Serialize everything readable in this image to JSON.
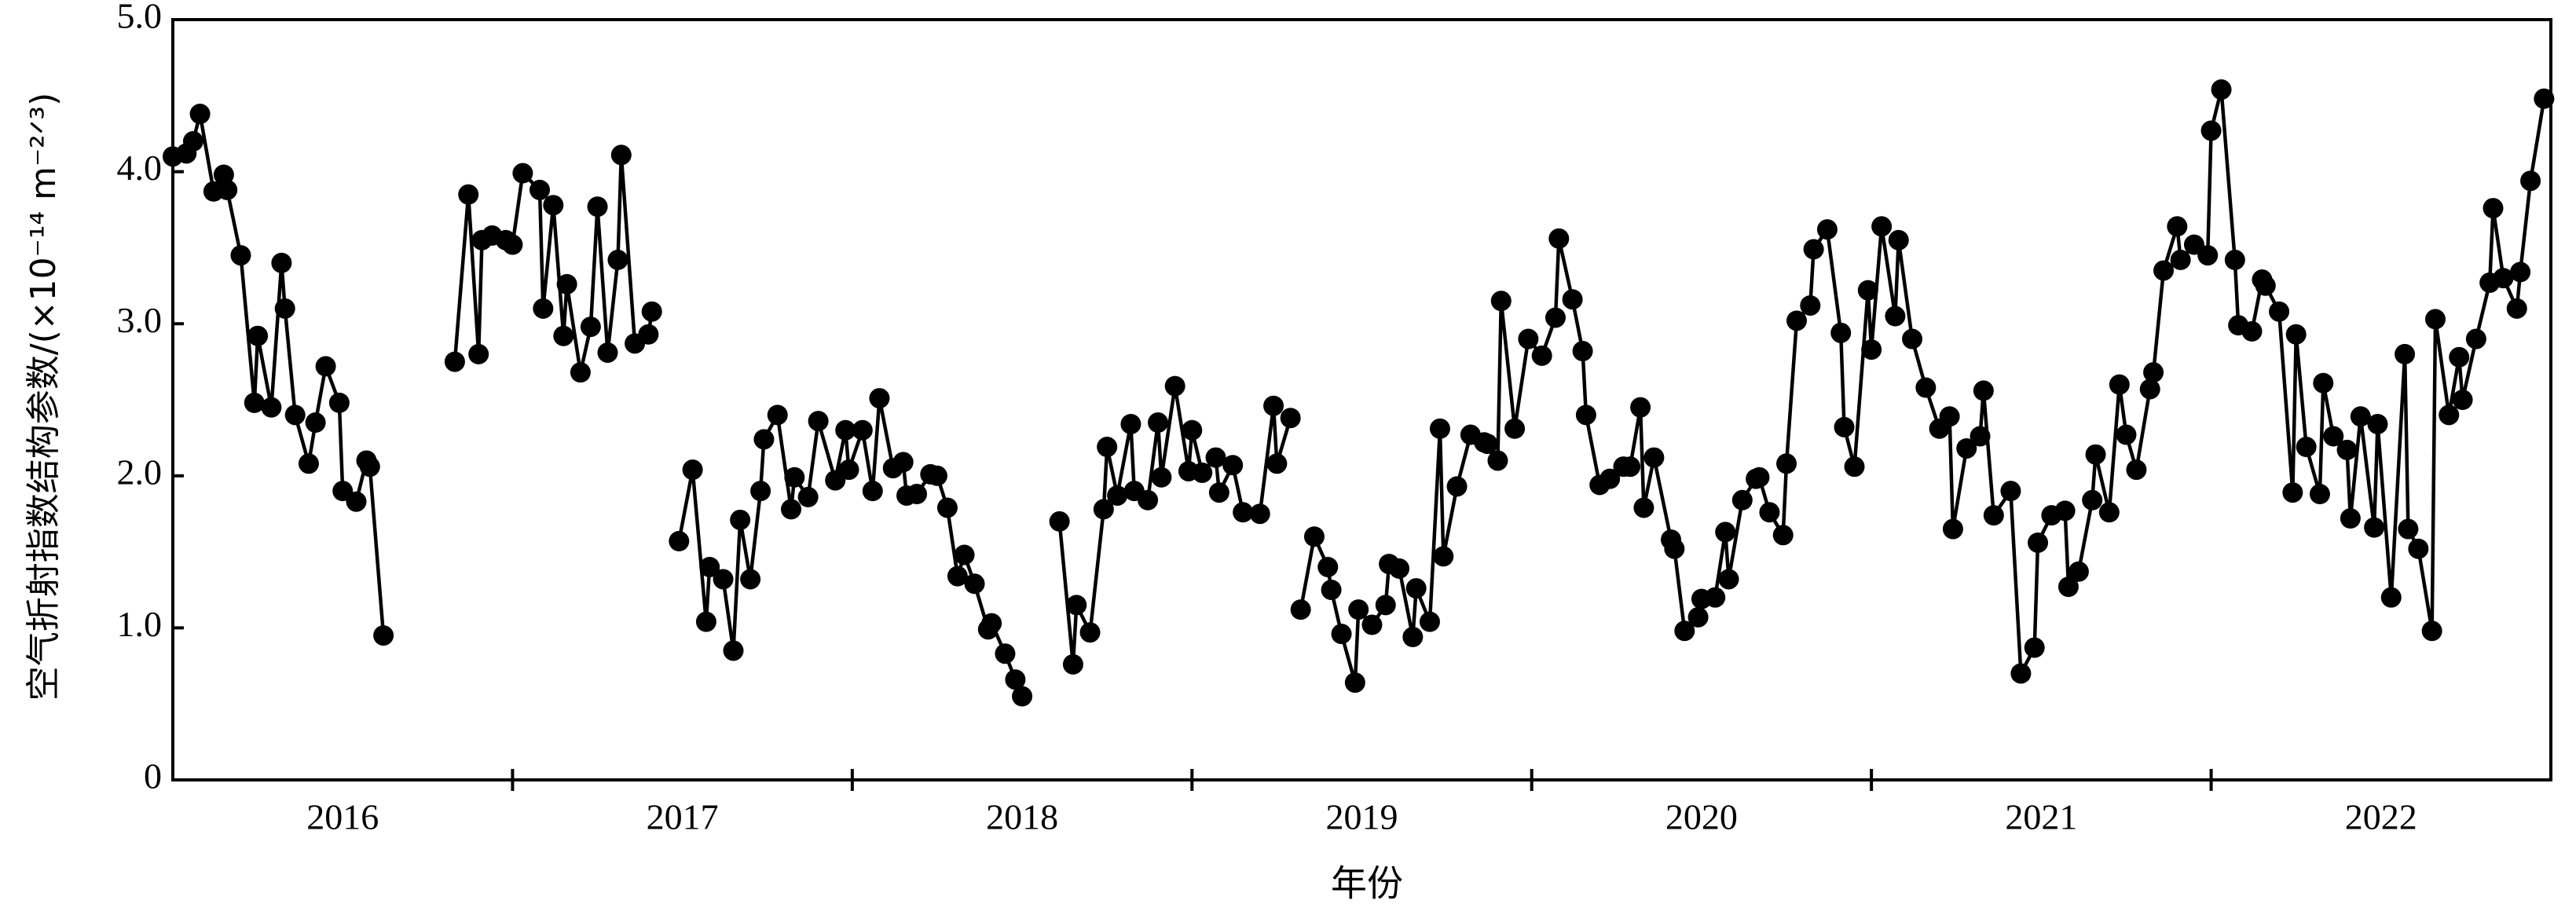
{
  "chart_data": {
    "type": "line",
    "y_label": "空气折射指数结构参数/(×10⁻¹⁴ m⁻²ᐟ³)",
    "x_label": "年份",
    "xlim": [
      2016,
      2023
    ],
    "xticks": [
      {
        "value": 2016.5,
        "label": "2016"
      },
      {
        "value": 2017.5,
        "label": "2017"
      },
      {
        "value": 2018.5,
        "label": "2018"
      },
      {
        "value": 2019.5,
        "label": "2019"
      },
      {
        "value": 2020.5,
        "label": "2020"
      },
      {
        "value": 2021.5,
        "label": "2021"
      },
      {
        "value": 2022.5,
        "label": "2022"
      }
    ],
    "xtick_marks": [
      2017,
      2018,
      2019,
      2020,
      2021,
      2022
    ],
    "ylim": [
      0,
      5
    ],
    "yticks": [
      0,
      {
        "value": 1,
        "label": "1.0"
      },
      {
        "value": 2,
        "label": "2.0"
      },
      {
        "value": 3,
        "label": "3.0"
      },
      {
        "value": 4,
        "label": "4.0"
      },
      {
        "value": 5,
        "label": "5.0"
      }
    ],
    "color": "#000000",
    "x": [
      2016.0,
      2016.04,
      2016.06,
      2016.08,
      2016.12,
      2016.15,
      2016.16,
      2016.2,
      2016.24,
      2016.25,
      2016.29,
      2016.32,
      2016.33,
      2016.36,
      2016.4,
      2016.42,
      2016.45,
      2016.49,
      2016.5,
      2016.54,
      2016.57,
      2016.58,
      2016.62,
      2016.72,
      2016.83,
      2016.87,
      2016.9,
      2016.91,
      2016.94,
      2016.98,
      2017.0,
      2017.03,
      2017.08,
      2017.09,
      2017.12,
      2017.15,
      2017.16,
      2017.2,
      2017.23,
      2017.25,
      2017.28,
      2017.31,
      2017.32,
      2017.36,
      2017.4,
      2017.41,
      2017.45,
      2017.49,
      2017.53,
      2017.57,
      2017.58,
      2017.62,
      2017.65,
      2017.67,
      2017.7,
      2017.73,
      2017.74,
      2017.78,
      2017.82,
      2017.83,
      2017.87,
      2017.9,
      2017.95,
      2017.98,
      2017.99,
      2018.03,
      2018.06,
      2018.08,
      2018.12,
      2018.15,
      2018.16,
      2018.19,
      2018.23,
      2018.25,
      2018.28,
      2018.31,
      2018.33,
      2018.36,
      2018.4,
      2018.41,
      2018.45,
      2018.48,
      2018.5,
      2018.55,
      2018.61,
      2018.65,
      2018.66,
      2018.7,
      2018.74,
      2018.75,
      2018.78,
      2018.82,
      2018.83,
      2018.87,
      2018.9,
      2018.91,
      2018.95,
      2018.99,
      2019.0,
      2019.03,
      2019.07,
      2019.08,
      2019.12,
      2019.15,
      2019.2,
      2019.24,
      2019.25,
      2019.29,
      2019.3,
      2019.32,
      2019.36,
      2019.4,
      2019.41,
      2019.44,
      2019.48,
      2019.49,
      2019.53,
      2019.57,
      2019.58,
      2019.61,
      2019.65,
      2019.66,
      2019.7,
      2019.73,
      2019.74,
      2019.78,
      2019.82,
      2019.86,
      2019.87,
      2019.9,
      2019.91,
      2019.95,
      2019.99,
      2020.03,
      2020.07,
      2020.08,
      2020.12,
      2020.15,
      2020.16,
      2020.2,
      2020.23,
      2020.27,
      2020.29,
      2020.32,
      2020.33,
      2020.36,
      2020.41,
      2020.42,
      2020.45,
      2020.49,
      2020.5,
      2020.54,
      2020.57,
      2020.58,
      2020.62,
      2020.66,
      2020.67,
      2020.7,
      2020.74,
      2020.75,
      2020.78,
      2020.82,
      2020.83,
      2020.87,
      2020.91,
      2020.92,
      2020.95,
      2020.99,
      2021.0,
      2021.03,
      2021.07,
      2021.08,
      2021.12,
      2021.16,
      2021.2,
      2021.23,
      2021.24,
      2021.28,
      2021.32,
      2021.33,
      2021.36,
      2021.41,
      2021.44,
      2021.48,
      2021.49,
      2021.53,
      2021.57,
      2021.58,
      2021.61,
      2021.65,
      2021.66,
      2021.7,
      2021.73,
      2021.75,
      2021.78,
      2021.82,
      2021.83,
      2021.86,
      2021.9,
      2021.91,
      2021.95,
      2021.99,
      2022.0,
      2022.03,
      2022.07,
      2022.08,
      2022.12,
      2022.15,
      2022.16,
      2022.2,
      2022.24,
      2022.25,
      2022.28,
      2022.32,
      2022.33,
      2022.36,
      2022.4,
      2022.41,
      2022.44,
      2022.48,
      2022.49,
      2022.53,
      2022.57,
      2022.58,
      2022.61,
      2022.65,
      2022.66,
      2022.7,
      2022.73,
      2022.74,
      2022.78,
      2022.82,
      2022.83,
      2022.86,
      2022.9,
      2022.91,
      2022.94,
      2022.98
    ],
    "values": [
      4.1,
      4.12,
      4.2,
      4.38,
      3.87,
      3.98,
      3.88,
      3.45,
      2.48,
      2.92,
      2.45,
      3.4,
      3.1,
      2.4,
      2.08,
      2.35,
      2.72,
      2.48,
      1.9,
      1.83,
      2.1,
      2.06,
      0.95,
      null,
      2.75,
      3.85,
      2.8,
      3.55,
      3.58,
      3.55,
      3.52,
      3.99,
      3.88,
      3.1,
      3.78,
      2.92,
      3.26,
      2.68,
      2.98,
      3.77,
      2.81,
      3.42,
      4.11,
      2.87,
      2.93,
      3.08,
      null,
      1.57,
      2.04,
      1.04,
      1.4,
      1.32,
      0.85,
      1.71,
      1.32,
      1.9,
      2.24,
      2.4,
      1.78,
      1.99,
      1.86,
      2.36,
      1.97,
      2.3,
      2.04,
      2.3,
      1.9,
      2.51,
      2.05,
      2.09,
      1.87,
      1.88,
      2.01,
      2.0,
      1.79,
      1.34,
      1.48,
      1.29,
      0.99,
      1.03,
      0.83,
      0.66,
      0.55,
      null,
      1.7,
      0.76,
      1.15,
      0.97,
      1.78,
      2.19,
      1.87,
      2.34,
      1.9,
      1.84,
      2.35,
      1.99,
      2.59,
      2.03,
      2.3,
      2.02,
      2.12,
      1.89,
      2.07,
      1.76,
      1.75,
      2.46,
      2.08,
      2.38,
      null,
      1.12,
      1.6,
      1.4,
      1.25,
      0.96,
      0.64,
      1.12,
      1.02,
      1.15,
      1.42,
      1.39,
      0.94,
      1.26,
      1.04,
      2.31,
      1.47,
      1.93,
      2.27,
      2.22,
      2.21,
      2.1,
      3.15,
      2.31,
      2.9,
      2.79,
      3.04,
      3.56,
      3.16,
      2.82,
      2.4,
      1.94,
      1.98,
      2.06,
      2.06,
      2.45,
      1.79,
      2.12,
      1.58,
      1.52,
      0.98,
      1.07,
      1.19,
      1.2,
      1.63,
      1.32,
      1.84,
      1.98,
      1.99,
      1.76,
      1.61,
      2.08,
      3.02,
      3.12,
      3.49,
      3.62,
      2.94,
      2.32,
      2.06,
      3.22,
      2.83,
      3.64,
      3.05,
      3.55,
      2.9,
      2.58,
      2.31,
      2.39,
      1.65,
      2.18,
      2.26,
      2.56,
      1.74,
      1.9,
      0.7,
      0.87,
      1.56,
      1.74,
      1.77,
      1.27,
      1.37,
      1.84,
      2.14,
      1.76,
      2.6,
      2.27,
      2.04,
      2.57,
      2.68,
      3.35,
      3.64,
      3.42,
      3.52,
      3.45,
      4.27,
      4.54,
      3.42,
      2.99,
      2.95,
      3.29,
      3.25,
      3.08,
      1.89,
      2.93,
      2.19,
      1.88,
      2.61,
      2.26,
      2.17,
      1.72,
      2.39,
      1.66,
      2.34,
      1.2,
      2.8,
      1.65,
      1.52,
      0.98,
      3.03,
      2.4,
      2.78,
      2.5,
      2.9,
      3.27,
      3.76,
      3.3,
      3.1,
      3.34,
      3.94,
      4.48
    ]
  }
}
